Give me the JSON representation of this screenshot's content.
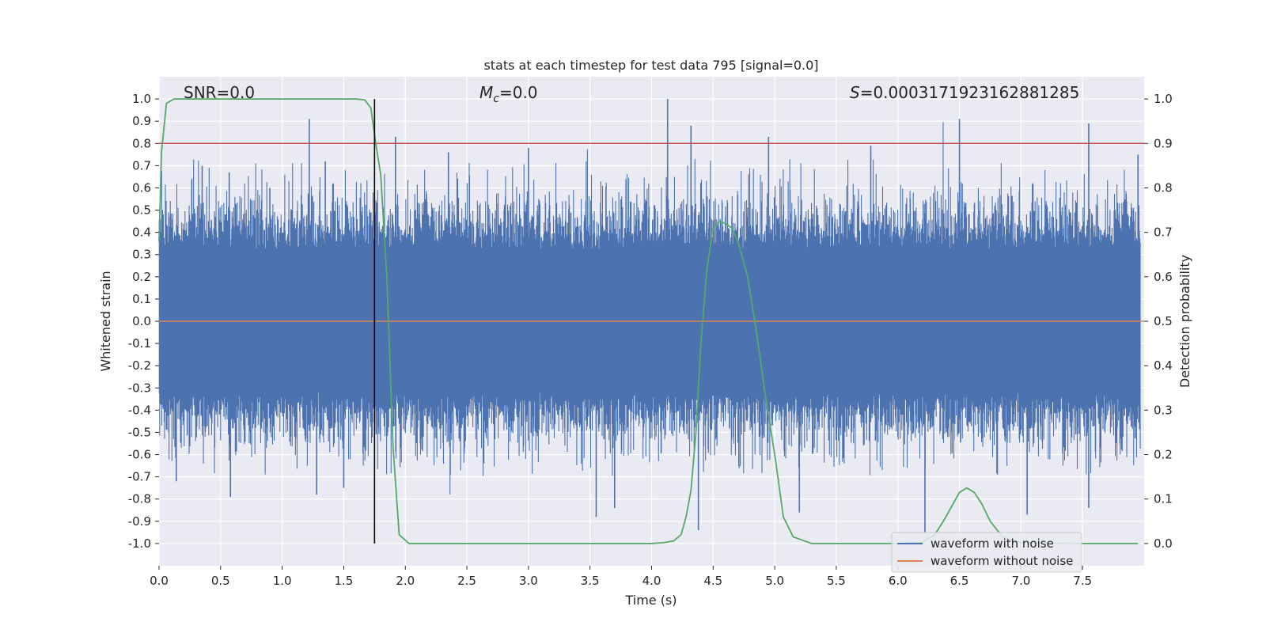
{
  "chart_data": {
    "type": "line",
    "title": "stats at each timestep for test data 795 [signal=0.0]",
    "xlabel": "Time (s)",
    "ylabel": "Whitened strain",
    "ylabel_right": "Detection probability",
    "xlim": [
      0.0,
      8.0
    ],
    "ylim": [
      -1.1,
      1.1
    ],
    "ylim_right": [
      -0.05,
      1.05
    ],
    "xticks": [
      "0.0",
      "0.5",
      "1.0",
      "1.5",
      "2.0",
      "2.5",
      "3.0",
      "3.5",
      "4.0",
      "4.5",
      "5.0",
      "5.5",
      "6.0",
      "6.5",
      "7.0",
      "7.5"
    ],
    "yticks": [
      "1.0",
      "0.9",
      "0.8",
      "0.7",
      "0.6",
      "0.5",
      "0.4",
      "0.3",
      "0.2",
      "0.1",
      "0.0",
      "-0.1",
      "-0.2",
      "-0.3",
      "-0.4",
      "-0.5",
      "-0.6",
      "-0.7",
      "-0.8",
      "-0.9",
      "-1.0"
    ],
    "yticks_right": [
      "1.0",
      "0.9",
      "0.8",
      "0.7",
      "0.6",
      "0.5",
      "0.4",
      "0.3",
      "0.2",
      "0.1",
      "0.0"
    ],
    "grid": true,
    "annotations": {
      "snr": "SNR=0.0",
      "mc_symbol": "M",
      "mc_sub": "c",
      "mc_value": "=0.0",
      "s_symbol": "S",
      "s_value": "=0.000317192316288128​5"
    },
    "threshold": {
      "value": 0.9,
      "axis": "right",
      "color": "#c44e52"
    },
    "vline": {
      "x": 1.75,
      "color": "#000000"
    },
    "zero_line": {
      "value": 0.0,
      "color": "#dd8452",
      "name": "waveform without noise"
    },
    "noise_series": {
      "name": "waveform with noise",
      "color": "#4c72b0",
      "envelope_positive_peaks": [
        {
          "x": 0.35,
          "y": 0.7
        },
        {
          "x": 0.57,
          "y": 0.67
        },
        {
          "x": 0.9,
          "y": 0.6
        },
        {
          "x": 1.22,
          "y": 0.91
        },
        {
          "x": 1.35,
          "y": 0.72
        },
        {
          "x": 1.92,
          "y": 0.83
        },
        {
          "x": 2.35,
          "y": 0.76
        },
        {
          "x": 3.0,
          "y": 0.78
        },
        {
          "x": 4.13,
          "y": 1.0
        },
        {
          "x": 4.32,
          "y": 0.88
        },
        {
          "x": 4.95,
          "y": 0.83
        },
        {
          "x": 5.78,
          "y": 0.79
        },
        {
          "x": 6.5,
          "y": 0.91
        },
        {
          "x": 7.55,
          "y": 0.89
        },
        {
          "x": 7.95,
          "y": 0.75
        }
      ],
      "envelope_negative_peaks": [
        {
          "x": 0.14,
          "y": -0.72
        },
        {
          "x": 0.58,
          "y": -0.79
        },
        {
          "x": 1.28,
          "y": -0.78
        },
        {
          "x": 1.5,
          "y": -0.75
        },
        {
          "x": 3.55,
          "y": -0.88
        },
        {
          "x": 3.7,
          "y": -0.84
        },
        {
          "x": 4.38,
          "y": -0.94
        },
        {
          "x": 5.2,
          "y": -0.86
        },
        {
          "x": 6.22,
          "y": -0.95
        },
        {
          "x": 7.05,
          "y": -0.87
        },
        {
          "x": 7.55,
          "y": -0.84
        }
      ]
    },
    "probability_series": {
      "name": "Detection probability",
      "color": "#55a868",
      "x": [
        0.0,
        0.02,
        0.06,
        0.12,
        0.2,
        0.4,
        1.0,
        1.5,
        1.6,
        1.67,
        1.72,
        1.76,
        1.8,
        1.85,
        1.9,
        1.95,
        2.03,
        2.2,
        3.0,
        4.0,
        4.1,
        4.18,
        4.24,
        4.28,
        4.32,
        4.36,
        4.4,
        4.45,
        4.5,
        4.55,
        4.6,
        4.65,
        4.7,
        4.78,
        4.85,
        4.92,
        5.0,
        5.07,
        5.15,
        5.3,
        6.0,
        6.2,
        6.3,
        6.38,
        6.45,
        6.5,
        6.56,
        6.62,
        6.68,
        6.75,
        6.85,
        7.0,
        7.5,
        7.95
      ],
      "y": [
        0.68,
        0.88,
        0.99,
        1.0,
        1.0,
        1.0,
        1.0,
        1.0,
        1.0,
        0.998,
        0.98,
        0.9,
        0.83,
        0.6,
        0.22,
        0.02,
        0.0,
        0.0,
        0.0,
        0.0,
        0.002,
        0.006,
        0.02,
        0.06,
        0.12,
        0.25,
        0.45,
        0.62,
        0.71,
        0.725,
        0.72,
        0.71,
        0.68,
        0.6,
        0.48,
        0.34,
        0.2,
        0.06,
        0.015,
        0.0,
        0.0,
        0.003,
        0.02,
        0.055,
        0.09,
        0.115,
        0.125,
        0.115,
        0.09,
        0.05,
        0.015,
        0.002,
        0.0,
        0.0
      ]
    },
    "legend": {
      "location": "lower-right",
      "entries": [
        {
          "label": "waveform with noise",
          "color": "#4c72b0"
        },
        {
          "label": "waveform without noise",
          "color": "#dd8452"
        }
      ]
    }
  }
}
